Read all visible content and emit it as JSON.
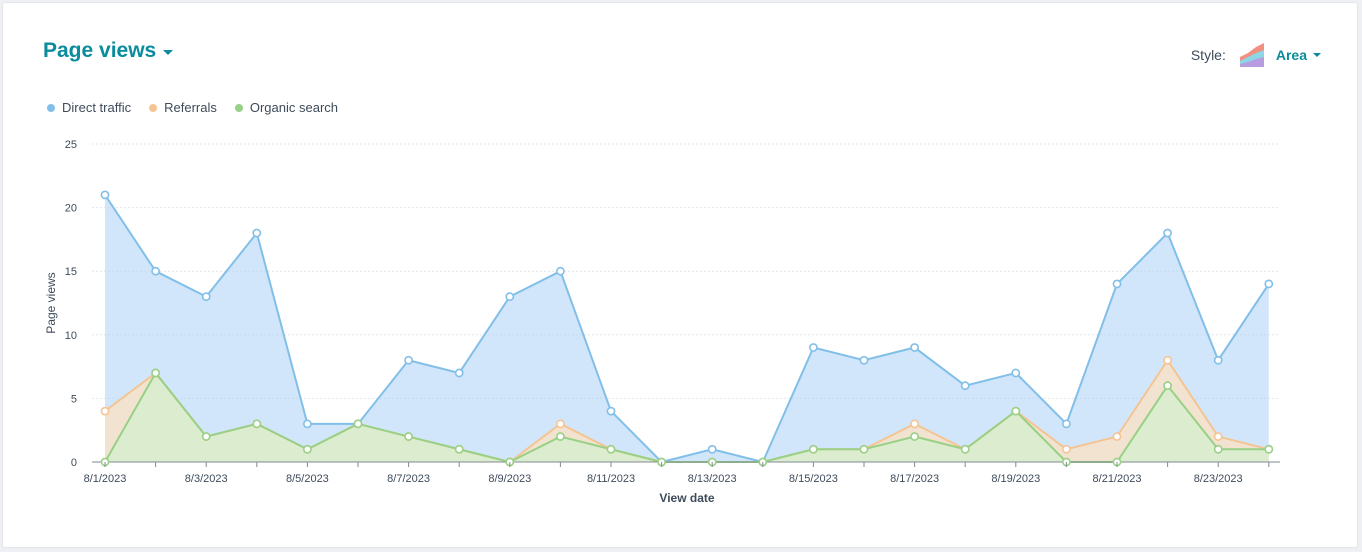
{
  "header": {
    "title": "Page views",
    "style_label": "Style:",
    "style_value": "Area"
  },
  "colors": {
    "accent": "#0b8c9c",
    "direct": "#82bfe8",
    "referrals": "#f5c493",
    "organic": "#98d085"
  },
  "chart_data": {
    "type": "area",
    "xlabel": "View date",
    "ylabel": "Page views",
    "ylim": [
      0,
      25
    ],
    "yticks": [
      0,
      5,
      10,
      15,
      20,
      25
    ],
    "x": [
      "8/1/2023",
      "8/2/2023",
      "8/3/2023",
      "8/4/2023",
      "8/5/2023",
      "8/6/2023",
      "8/7/2023",
      "8/8/2023",
      "8/9/2023",
      "8/10/2023",
      "8/11/2023",
      "8/12/2023",
      "8/13/2023",
      "8/14/2023",
      "8/15/2023",
      "8/16/2023",
      "8/17/2023",
      "8/18/2023",
      "8/19/2023",
      "8/20/2023",
      "8/21/2023",
      "8/22/2023",
      "8/23/2023",
      "8/24/2023"
    ],
    "xtick_labels": [
      "8/1/2023",
      "8/3/2023",
      "8/5/2023",
      "8/7/2023",
      "8/9/2023",
      "8/11/2023",
      "8/13/2023",
      "8/15/2023",
      "8/17/2023",
      "8/19/2023",
      "8/21/2023",
      "8/23/2023"
    ],
    "grid": true,
    "legend_placement": "top-left",
    "series": [
      {
        "name": "Direct traffic",
        "color": "#82bfe8",
        "values": [
          21,
          15,
          13,
          18,
          3,
          3,
          8,
          7,
          13,
          15,
          4,
          0,
          1,
          0,
          9,
          8,
          9,
          6,
          7,
          3,
          14,
          18,
          8,
          14
        ]
      },
      {
        "name": "Referrals",
        "color": "#f5c493",
        "values": [
          4,
          7,
          2,
          3,
          1,
          3,
          2,
          1,
          0,
          3,
          1,
          0,
          0,
          0,
          1,
          1,
          3,
          1,
          4,
          1,
          2,
          8,
          2,
          1
        ]
      },
      {
        "name": "Organic search",
        "color": "#98d085",
        "values": [
          0,
          7,
          2,
          3,
          1,
          3,
          2,
          1,
          0,
          2,
          1,
          0,
          0,
          0,
          1,
          1,
          2,
          1,
          4,
          0,
          0,
          6,
          1,
          1
        ]
      }
    ]
  }
}
